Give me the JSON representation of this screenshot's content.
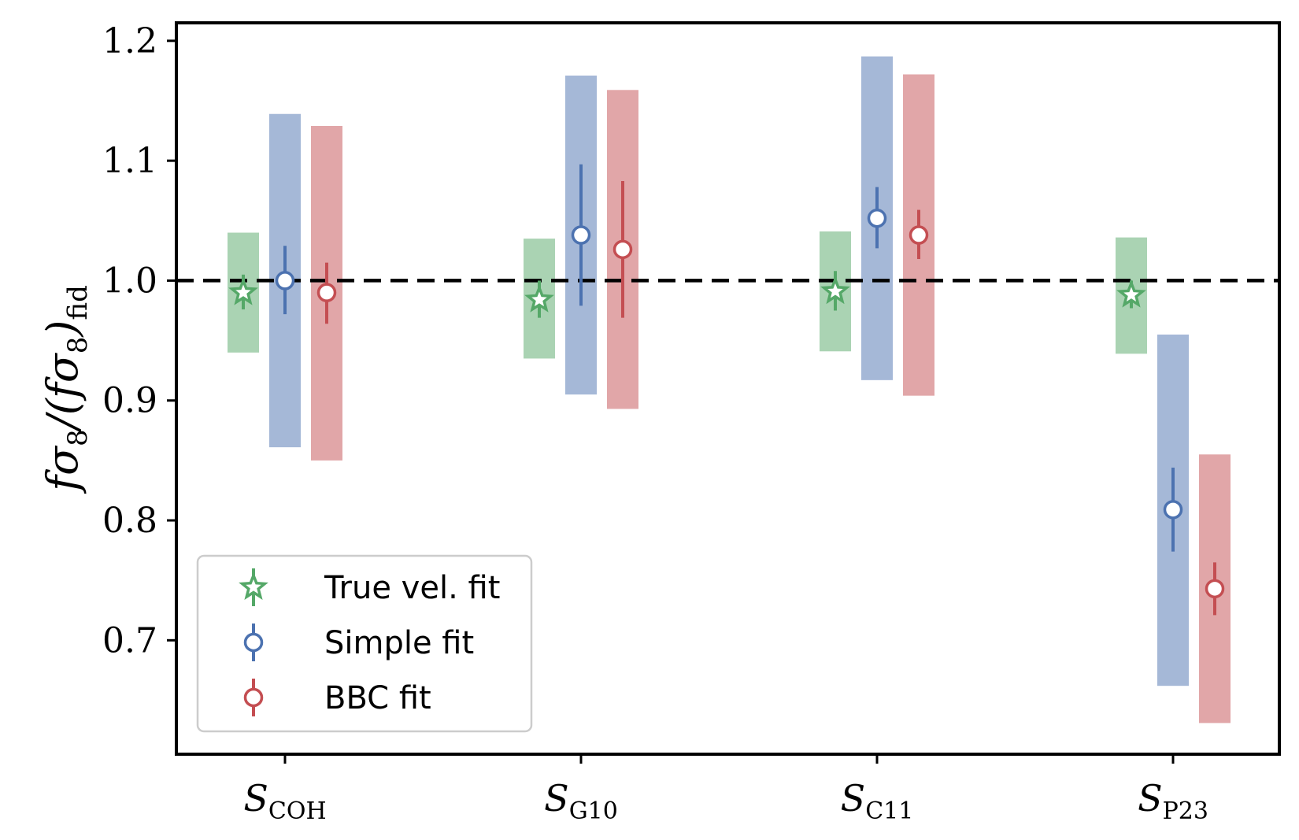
{
  "chart_data": {
    "type": "scatter",
    "xlabel": "",
    "ylabel": "fσ8/(fσ8)fid",
    "ylabel_parts": {
      "main": "fσ",
      "sub1": "8",
      "mid": "/(fσ",
      "sub2": "8",
      "close": ")",
      "sub3": "fid"
    },
    "ylim": [
      0.605,
      1.215
    ],
    "yticks": [
      "0.7",
      "0.8",
      "0.9",
      "1.0",
      "1.1",
      "1.2"
    ],
    "reference_line": {
      "y": 1.0,
      "style": "dashed",
      "color": "#000000"
    },
    "categories": [
      {
        "main": "S",
        "sub": "COH"
      },
      {
        "main": "S",
        "sub": "G10"
      },
      {
        "main": "S",
        "sub": "C11"
      },
      {
        "main": "S",
        "sub": "P23"
      }
    ],
    "series": [
      {
        "name": "True vel. fit",
        "marker": "star",
        "color": "#55A868",
        "values": [
          0.99,
          0.984,
          0.991,
          0.988
        ],
        "err_low": [
          0.976,
          0.969,
          0.975,
          0.977
        ],
        "err_high": [
          1.005,
          1.0,
          1.008,
          1.0
        ],
        "band_low": [
          0.94,
          0.935,
          0.941,
          0.939
        ],
        "band_high": [
          1.04,
          1.035,
          1.041,
          1.036
        ]
      },
      {
        "name": "Simple fit",
        "marker": "circle",
        "color": "#4C72B0",
        "values": [
          1.0,
          1.038,
          1.052,
          0.809
        ],
        "err_low": [
          0.972,
          0.979,
          1.027,
          0.774
        ],
        "err_high": [
          1.029,
          1.097,
          1.078,
          0.844
        ],
        "band_low": [
          0.861,
          0.905,
          0.917,
          0.662
        ],
        "band_high": [
          1.139,
          1.171,
          1.187,
          0.955
        ]
      },
      {
        "name": "BBC fit",
        "marker": "circle",
        "color": "#C44E52",
        "values": [
          0.99,
          1.026,
          1.038,
          0.743
        ],
        "err_low": [
          0.964,
          0.969,
          1.018,
          0.721
        ],
        "err_high": [
          1.015,
          1.083,
          1.059,
          0.765
        ],
        "band_low": [
          0.85,
          0.893,
          0.904,
          0.631
        ],
        "band_high": [
          1.129,
          1.159,
          1.172,
          0.855
        ]
      }
    ],
    "legend": {
      "position": "lower-left"
    },
    "grid": false
  }
}
